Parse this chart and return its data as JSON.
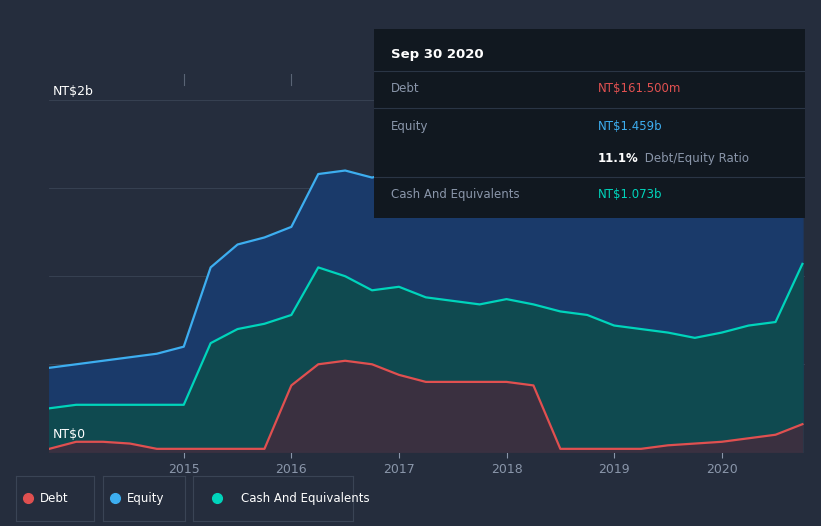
{
  "background_color": "#252d3d",
  "plot_bg_color": "#252d3d",
  "ylabel_top": "NT$2b",
  "ylabel_bottom": "NT$0",
  "x_ticks": [
    2015,
    2016,
    2017,
    2018,
    2019,
    2020
  ],
  "tooltip": {
    "date": "Sep 30 2020",
    "debt_label": "Debt",
    "debt_value": "NT$161.500m",
    "equity_label": "Equity",
    "equity_value": "NT$1.459b",
    "ratio_value": "11.1%",
    "ratio_label": " Debt/Equity Ratio",
    "cash_label": "Cash And Equivalents",
    "cash_value": "NT$1.073b"
  },
  "legend": [
    {
      "label": "Debt",
      "color": "#e05050"
    },
    {
      "label": "Equity",
      "color": "#3daef0"
    },
    {
      "label": "Cash And Equivalents",
      "color": "#00d4bb"
    }
  ],
  "equity_color": "#3daef0",
  "equity_fill": "#1a3a6a",
  "debt_color": "#e05050",
  "debt_fill": "#3a3040",
  "cash_color": "#00d4bb",
  "cash_fill": "#0f4a50",
  "time": [
    2013.75,
    2014.0,
    2014.25,
    2014.5,
    2014.75,
    2015.0,
    2015.25,
    2015.5,
    2015.75,
    2016.0,
    2016.25,
    2016.5,
    2016.75,
    2017.0,
    2017.25,
    2017.5,
    2017.75,
    2018.0,
    2018.25,
    2018.5,
    2018.75,
    2019.0,
    2019.25,
    2019.5,
    2019.75,
    2020.0,
    2020.25,
    2020.5,
    2020.75
  ],
  "equity": [
    0.48,
    0.5,
    0.52,
    0.54,
    0.56,
    0.6,
    1.05,
    1.18,
    1.22,
    1.28,
    1.58,
    1.6,
    1.56,
    1.6,
    1.72,
    1.8,
    1.85,
    1.88,
    1.84,
    1.82,
    1.79,
    1.74,
    1.66,
    1.62,
    1.57,
    1.54,
    1.52,
    1.5,
    1.46
  ],
  "cash": [
    0.25,
    0.27,
    0.27,
    0.27,
    0.27,
    0.27,
    0.62,
    0.7,
    0.73,
    0.78,
    1.05,
    1.0,
    0.92,
    0.94,
    0.88,
    0.86,
    0.84,
    0.87,
    0.84,
    0.8,
    0.78,
    0.72,
    0.7,
    0.68,
    0.65,
    0.68,
    0.72,
    0.74,
    1.07
  ],
  "debt": [
    0.02,
    0.06,
    0.06,
    0.05,
    0.02,
    0.02,
    0.02,
    0.02,
    0.02,
    0.38,
    0.5,
    0.52,
    0.5,
    0.44,
    0.4,
    0.4,
    0.4,
    0.4,
    0.38,
    0.02,
    0.02,
    0.02,
    0.02,
    0.04,
    0.05,
    0.06,
    0.08,
    0.1,
    0.16
  ]
}
